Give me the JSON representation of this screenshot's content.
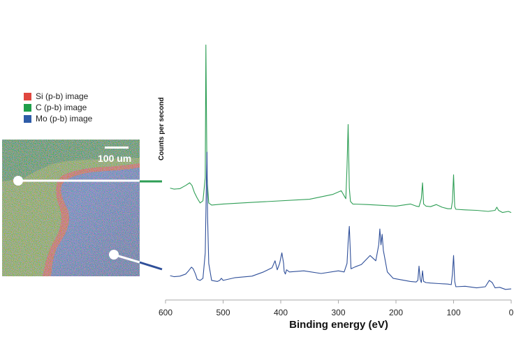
{
  "legend": [
    {
      "label": "Si (p-b) image",
      "color": "#e0473f"
    },
    {
      "label": "C (p-b) image",
      "color": "#1f9e4a"
    },
    {
      "label": "Mo (p-b) image",
      "color": "#2e5ca8"
    }
  ],
  "scale_bar": {
    "label": "100 um"
  },
  "chart_data": {
    "type": "line",
    "xlabel": "Binding energy (eV)",
    "ylabel": "Counts per second",
    "xlim": [
      600,
      0
    ],
    "x_reversed": true,
    "xticks": [
      600,
      500,
      400,
      300,
      200,
      100,
      0
    ],
    "grid": false,
    "series": [
      {
        "color": "#2e9e55",
        "x": [
          592,
          585,
          575,
          565,
          558,
          554,
          550,
          545,
          540,
          535,
          531,
          530,
          528,
          525,
          520,
          500,
          450,
          350,
          310,
          295,
          287,
          285,
          283,
          281,
          279,
          275,
          250,
          200,
          175,
          165,
          160,
          156,
          154,
          152,
          148,
          140,
          130,
          120,
          110,
          104,
          102,
          100,
          98,
          96,
          80,
          60,
          40,
          28,
          25,
          22,
          15,
          5,
          0
        ],
        "y": [
          4.0,
          3.8,
          3.9,
          4.5,
          5.0,
          4.5,
          3.2,
          2.1,
          1.2,
          1.6,
          6.0,
          31.0,
          6.0,
          1.2,
          0.8,
          1.0,
          1.3,
          1.9,
          2.8,
          3.5,
          2.0,
          8.0,
          16.0,
          4.0,
          1.5,
          1.0,
          0.9,
          0.6,
          1.0,
          0.6,
          0.5,
          2.0,
          5.0,
          1.0,
          0.6,
          0.5,
          0.9,
          0.4,
          0.1,
          0.1,
          1.5,
          6.5,
          0.5,
          0.0,
          -0.1,
          -0.2,
          -0.4,
          -0.2,
          0.4,
          -0.2,
          -0.6,
          -0.4,
          -0.6
        ]
      },
      {
        "color": "#2f4f99",
        "x": [
          592,
          585,
          575,
          565,
          560,
          555,
          552,
          548,
          545,
          540,
          535,
          531,
          529,
          528,
          527,
          525,
          520,
          510,
          506,
          503,
          500,
          480,
          450,
          430,
          415,
          410,
          406,
          402,
          398,
          395,
          394,
          392,
          390,
          385,
          360,
          330,
          300,
          290,
          285,
          283,
          281,
          278,
          270,
          260,
          245,
          235,
          230,
          228,
          226,
          224,
          222,
          215,
          205,
          190,
          175,
          165,
          162,
          160,
          158,
          156,
          154,
          152,
          148,
          140,
          125,
          110,
          104,
          102,
          100,
          98,
          96,
          80,
          60,
          45,
          38,
          33,
          28,
          20,
          10,
          0
        ],
        "y": [
          1.7,
          1.5,
          1.6,
          2.0,
          2.6,
          3.3,
          3.0,
          2.0,
          1.0,
          0.8,
          1.2,
          6.0,
          20.0,
          25.0,
          13.0,
          4.0,
          0.8,
          0.6,
          0.8,
          1.2,
          0.8,
          1.3,
          1.6,
          2.4,
          3.2,
          4.5,
          2.8,
          4.0,
          6.0,
          4.0,
          2.5,
          2.0,
          2.8,
          2.4,
          2.6,
          2.1,
          2.6,
          2.4,
          4.0,
          8.0,
          11.0,
          3.0,
          3.4,
          3.8,
          5.5,
          4.5,
          7.5,
          10.5,
          7.5,
          9.5,
          6.5,
          2.4,
          1.2,
          0.9,
          0.6,
          0.5,
          0.8,
          3.5,
          1.0,
          0.4,
          2.6,
          0.6,
          0.4,
          0.3,
          0.2,
          0.1,
          0.0,
          2.0,
          5.5,
          0.6,
          -0.4,
          -0.3,
          -0.6,
          -0.4,
          0.8,
          0.4,
          -0.6,
          -0.5,
          -0.9,
          -0.8
        ]
      }
    ]
  }
}
